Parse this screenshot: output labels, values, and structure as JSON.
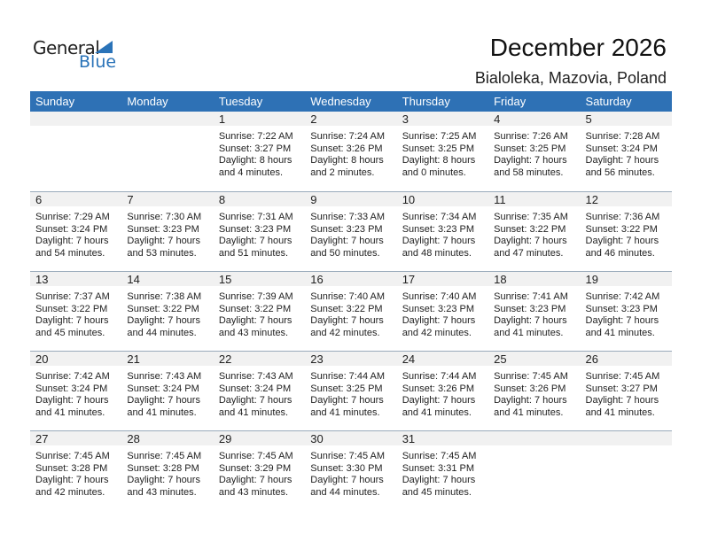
{
  "logo": {
    "line1": "General",
    "line2": "Blue"
  },
  "title": "December 2026",
  "location": "Bialoleka, Mazovia, Poland",
  "weekdays": [
    "Sunday",
    "Monday",
    "Tuesday",
    "Wednesday",
    "Thursday",
    "Friday",
    "Saturday"
  ],
  "colors": {
    "header": "#2e71b5",
    "band": "#f1f1f1"
  },
  "weeks": [
    [
      null,
      null,
      {
        "d": "1",
        "sr": "Sunrise: 7:22 AM",
        "ss": "Sunset: 3:27 PM",
        "dl": "Daylight: 8 hours",
        "dm": "and 4 minutes."
      },
      {
        "d": "2",
        "sr": "Sunrise: 7:24 AM",
        "ss": "Sunset: 3:26 PM",
        "dl": "Daylight: 8 hours",
        "dm": "and 2 minutes."
      },
      {
        "d": "3",
        "sr": "Sunrise: 7:25 AM",
        "ss": "Sunset: 3:25 PM",
        "dl": "Daylight: 8 hours",
        "dm": "and 0 minutes."
      },
      {
        "d": "4",
        "sr": "Sunrise: 7:26 AM",
        "ss": "Sunset: 3:25 PM",
        "dl": "Daylight: 7 hours",
        "dm": "and 58 minutes."
      },
      {
        "d": "5",
        "sr": "Sunrise: 7:28 AM",
        "ss": "Sunset: 3:24 PM",
        "dl": "Daylight: 7 hours",
        "dm": "and 56 minutes."
      }
    ],
    [
      {
        "d": "6",
        "sr": "Sunrise: 7:29 AM",
        "ss": "Sunset: 3:24 PM",
        "dl": "Daylight: 7 hours",
        "dm": "and 54 minutes."
      },
      {
        "d": "7",
        "sr": "Sunrise: 7:30 AM",
        "ss": "Sunset: 3:23 PM",
        "dl": "Daylight: 7 hours",
        "dm": "and 53 minutes."
      },
      {
        "d": "8",
        "sr": "Sunrise: 7:31 AM",
        "ss": "Sunset: 3:23 PM",
        "dl": "Daylight: 7 hours",
        "dm": "and 51 minutes."
      },
      {
        "d": "9",
        "sr": "Sunrise: 7:33 AM",
        "ss": "Sunset: 3:23 PM",
        "dl": "Daylight: 7 hours",
        "dm": "and 50 minutes."
      },
      {
        "d": "10",
        "sr": "Sunrise: 7:34 AM",
        "ss": "Sunset: 3:23 PM",
        "dl": "Daylight: 7 hours",
        "dm": "and 48 minutes."
      },
      {
        "d": "11",
        "sr": "Sunrise: 7:35 AM",
        "ss": "Sunset: 3:22 PM",
        "dl": "Daylight: 7 hours",
        "dm": "and 47 minutes."
      },
      {
        "d": "12",
        "sr": "Sunrise: 7:36 AM",
        "ss": "Sunset: 3:22 PM",
        "dl": "Daylight: 7 hours",
        "dm": "and 46 minutes."
      }
    ],
    [
      {
        "d": "13",
        "sr": "Sunrise: 7:37 AM",
        "ss": "Sunset: 3:22 PM",
        "dl": "Daylight: 7 hours",
        "dm": "and 45 minutes."
      },
      {
        "d": "14",
        "sr": "Sunrise: 7:38 AM",
        "ss": "Sunset: 3:22 PM",
        "dl": "Daylight: 7 hours",
        "dm": "and 44 minutes."
      },
      {
        "d": "15",
        "sr": "Sunrise: 7:39 AM",
        "ss": "Sunset: 3:22 PM",
        "dl": "Daylight: 7 hours",
        "dm": "and 43 minutes."
      },
      {
        "d": "16",
        "sr": "Sunrise: 7:40 AM",
        "ss": "Sunset: 3:22 PM",
        "dl": "Daylight: 7 hours",
        "dm": "and 42 minutes."
      },
      {
        "d": "17",
        "sr": "Sunrise: 7:40 AM",
        "ss": "Sunset: 3:23 PM",
        "dl": "Daylight: 7 hours",
        "dm": "and 42 minutes."
      },
      {
        "d": "18",
        "sr": "Sunrise: 7:41 AM",
        "ss": "Sunset: 3:23 PM",
        "dl": "Daylight: 7 hours",
        "dm": "and 41 minutes."
      },
      {
        "d": "19",
        "sr": "Sunrise: 7:42 AM",
        "ss": "Sunset: 3:23 PM",
        "dl": "Daylight: 7 hours",
        "dm": "and 41 minutes."
      }
    ],
    [
      {
        "d": "20",
        "sr": "Sunrise: 7:42 AM",
        "ss": "Sunset: 3:24 PM",
        "dl": "Daylight: 7 hours",
        "dm": "and 41 minutes."
      },
      {
        "d": "21",
        "sr": "Sunrise: 7:43 AM",
        "ss": "Sunset: 3:24 PM",
        "dl": "Daylight: 7 hours",
        "dm": "and 41 minutes."
      },
      {
        "d": "22",
        "sr": "Sunrise: 7:43 AM",
        "ss": "Sunset: 3:24 PM",
        "dl": "Daylight: 7 hours",
        "dm": "and 41 minutes."
      },
      {
        "d": "23",
        "sr": "Sunrise: 7:44 AM",
        "ss": "Sunset: 3:25 PM",
        "dl": "Daylight: 7 hours",
        "dm": "and 41 minutes."
      },
      {
        "d": "24",
        "sr": "Sunrise: 7:44 AM",
        "ss": "Sunset: 3:26 PM",
        "dl": "Daylight: 7 hours",
        "dm": "and 41 minutes."
      },
      {
        "d": "25",
        "sr": "Sunrise: 7:45 AM",
        "ss": "Sunset: 3:26 PM",
        "dl": "Daylight: 7 hours",
        "dm": "and 41 minutes."
      },
      {
        "d": "26",
        "sr": "Sunrise: 7:45 AM",
        "ss": "Sunset: 3:27 PM",
        "dl": "Daylight: 7 hours",
        "dm": "and 41 minutes."
      }
    ],
    [
      {
        "d": "27",
        "sr": "Sunrise: 7:45 AM",
        "ss": "Sunset: 3:28 PM",
        "dl": "Daylight: 7 hours",
        "dm": "and 42 minutes."
      },
      {
        "d": "28",
        "sr": "Sunrise: 7:45 AM",
        "ss": "Sunset: 3:28 PM",
        "dl": "Daylight: 7 hours",
        "dm": "and 43 minutes."
      },
      {
        "d": "29",
        "sr": "Sunrise: 7:45 AM",
        "ss": "Sunset: 3:29 PM",
        "dl": "Daylight: 7 hours",
        "dm": "and 43 minutes."
      },
      {
        "d": "30",
        "sr": "Sunrise: 7:45 AM",
        "ss": "Sunset: 3:30 PM",
        "dl": "Daylight: 7 hours",
        "dm": "and 44 minutes."
      },
      {
        "d": "31",
        "sr": "Sunrise: 7:45 AM",
        "ss": "Sunset: 3:31 PM",
        "dl": "Daylight: 7 hours",
        "dm": "and 45 minutes."
      },
      null,
      null
    ]
  ]
}
